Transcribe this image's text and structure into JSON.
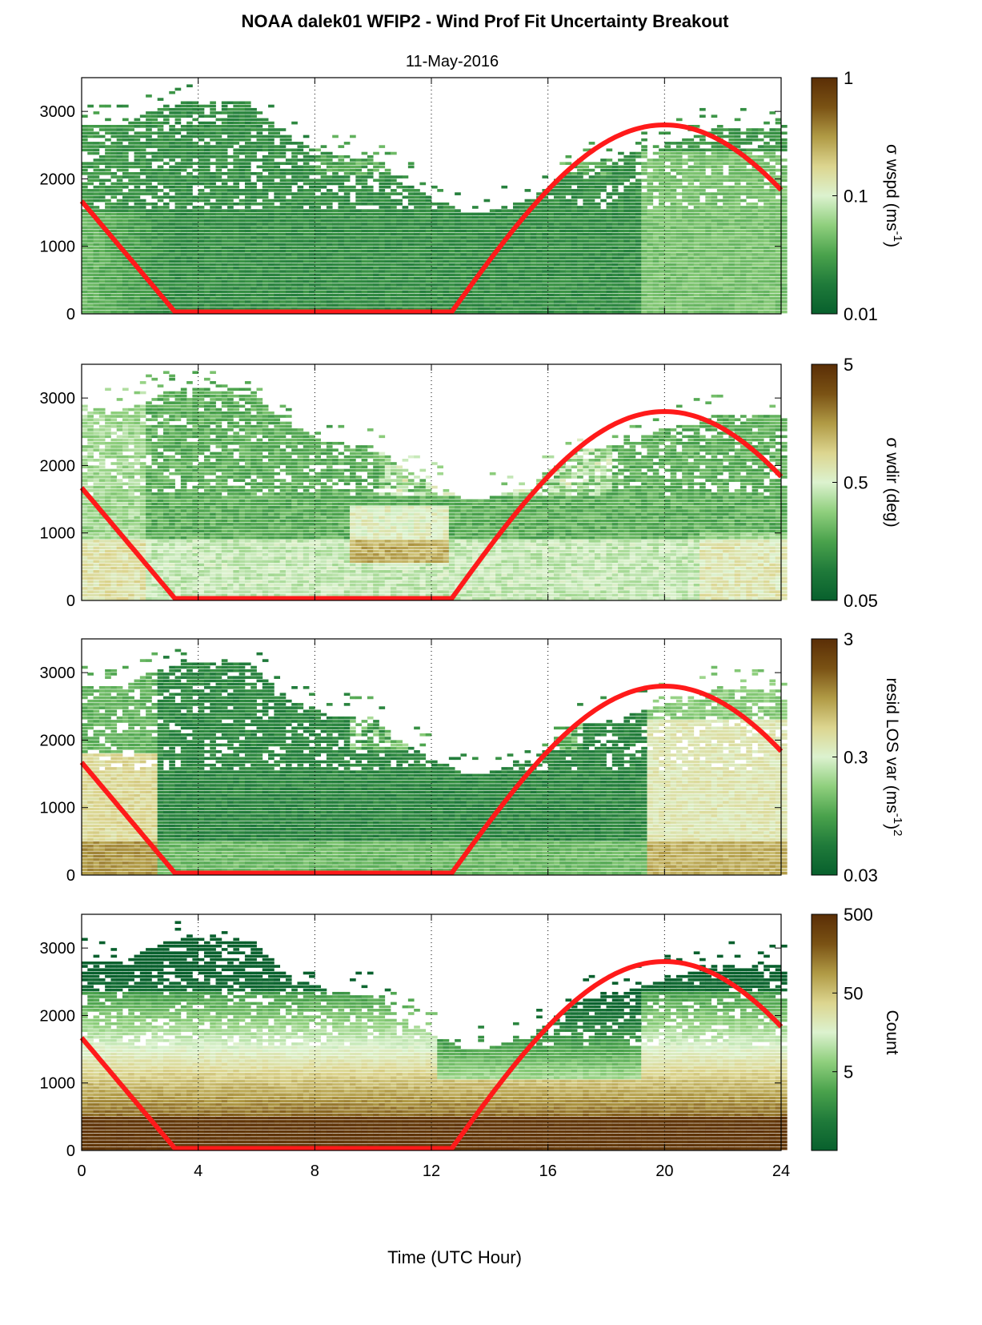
{
  "figure": {
    "title": "NOAA dalek01 WFIP2 - Wind Prof Fit Uncertainty Breakout",
    "subtitle": "11-May-2016",
    "xlabel": "Time (UTC Hour)"
  },
  "colors": {
    "sun_curve": "#ff1a1a",
    "colormap": [
      "#08602d",
      "#1f7a3a",
      "#4aa24c",
      "#8fcf7d",
      "#dcf2cf",
      "#dcd58f",
      "#b09a45",
      "#7a5214",
      "#5a2e06"
    ]
  },
  "chart_data": [
    {
      "type": "heatmap",
      "panel": 1,
      "x_ticks": [
        "0",
        "4",
        "8",
        "12",
        "16",
        "20",
        "24"
      ],
      "y_ticks": [
        "0",
        "1000",
        "2000",
        "3000"
      ],
      "xlim": [
        0,
        24
      ],
      "ylim": [
        0,
        3500
      ],
      "grid": "vertical dotted at 4, 8, 12, 16, 20",
      "colorbar": {
        "label": "σ wspd (ms",
        "label_sup": "-1",
        "label_end": ")",
        "scale": "log",
        "ticks": [
          "1",
          "0.1",
          "0.01"
        ],
        "range": [
          0.01,
          1
        ]
      },
      "overlay_curve": {
        "x": [
          0,
          3.2,
          12.7,
          20,
          24
        ],
        "y": [
          1670,
          30,
          30,
          2800,
          1820
        ]
      }
    },
    {
      "type": "heatmap",
      "panel": 2,
      "x_ticks": [
        "0",
        "4",
        "8",
        "12",
        "16",
        "20",
        "24"
      ],
      "y_ticks": [
        "0",
        "1000",
        "2000",
        "3000"
      ],
      "xlim": [
        0,
        24
      ],
      "ylim": [
        0,
        3500
      ],
      "grid": "vertical dotted at 4, 8, 12, 16, 20",
      "colorbar": {
        "label": "σ wdir (deg)",
        "scale": "log",
        "ticks": [
          "5",
          "0.5",
          "0.05"
        ],
        "range": [
          0.05,
          5
        ]
      },
      "overlay_curve": {
        "x": [
          0,
          3.2,
          12.7,
          20,
          24
        ],
        "y": [
          1670,
          30,
          30,
          2800,
          1820
        ]
      }
    },
    {
      "type": "heatmap",
      "panel": 3,
      "x_ticks": [
        "0",
        "4",
        "8",
        "12",
        "16",
        "20",
        "24"
      ],
      "y_ticks": [
        "0",
        "1000",
        "2000",
        "3000"
      ],
      "xlim": [
        0,
        24
      ],
      "ylim": [
        0,
        3500
      ],
      "grid": "vertical dotted at 4, 8, 12, 16, 20",
      "colorbar": {
        "label": "resid LOS var (ms",
        "label_sup": "-1",
        "label_end": ")",
        "label_sup2": "2",
        "scale": "log",
        "ticks": [
          "3",
          "0.3",
          "0.03"
        ],
        "range": [
          0.03,
          3
        ]
      },
      "overlay_curve": {
        "x": [
          0,
          3.2,
          12.7,
          20,
          24
        ],
        "y": [
          1670,
          30,
          30,
          2800,
          1820
        ]
      }
    },
    {
      "type": "heatmap",
      "panel": 4,
      "x_ticks": [
        "0",
        "4",
        "8",
        "12",
        "16",
        "20",
        "24"
      ],
      "y_ticks": [
        "0",
        "1000",
        "2000",
        "3000"
      ],
      "xlim": [
        0,
        24
      ],
      "ylim": [
        0,
        3500
      ],
      "grid": "vertical dotted at 4, 8, 12, 16, 20",
      "colorbar": {
        "label": "Count",
        "scale": "log",
        "ticks": [
          "500",
          "50",
          "5"
        ],
        "range": [
          0.5,
          500
        ]
      },
      "overlay_curve": {
        "x": [
          0,
          3.2,
          12.7,
          20,
          24
        ],
        "y": [
          1670,
          30,
          30,
          2800,
          1820
        ]
      }
    }
  ]
}
